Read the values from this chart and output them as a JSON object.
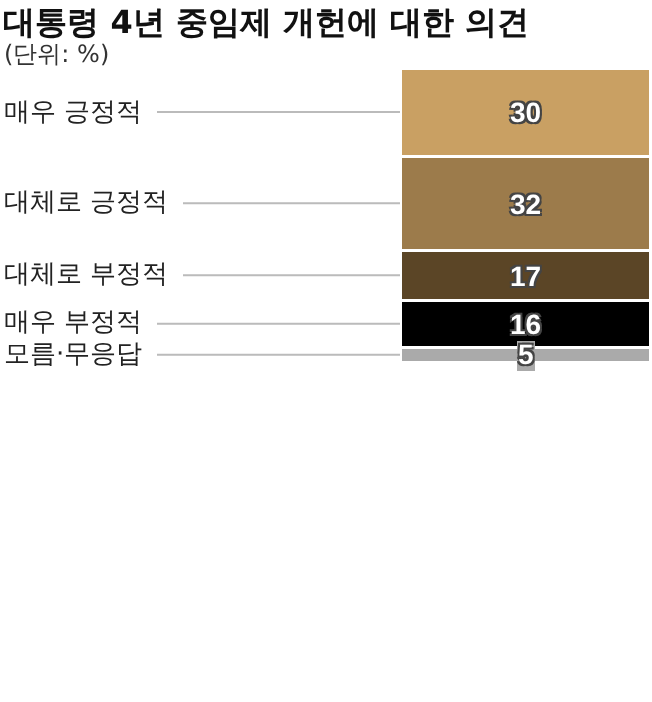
{
  "chart_data": {
    "type": "bar",
    "title": "대통령 4년 중임제 개헌에 대한 의견",
    "subtitle": "(단위: %)",
    "stacked": true,
    "categories": [
      null
    ],
    "data_labels": true,
    "legend": false,
    "series": [
      {
        "name": "모름·무응답",
        "color": "#aaaaaa",
        "values": [
          5
        ]
      },
      {
        "name": "매우 부정적",
        "color": "#000000",
        "values": [
          16
        ]
      },
      {
        "name": "대체로 부정적",
        "color": "#5b4526",
        "values": [
          17
        ]
      },
      {
        "name": "대체로 긍정적",
        "color": "#9c7b4b",
        "values": [
          32
        ]
      },
      {
        "name": "매우 긍정적",
        "color": "#c9a063",
        "values": [
          30
        ]
      }
    ]
  }
}
